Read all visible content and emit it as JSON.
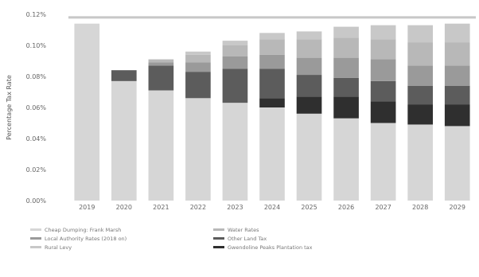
{
  "chart_data": {
    "type": "bar",
    "stacked": true,
    "title": "",
    "xlabel": "",
    "ylabel": "Percentage Tax Rate",
    "ylim": [
      0,
      0.12
    ],
    "yticks": [
      "0.00%",
      "0.02%",
      "0.04%",
      "0.06%",
      "0.08%",
      "0.10%",
      "0.12%"
    ],
    "ytick_values": [
      0,
      0.02,
      0.04,
      0.06,
      0.08,
      0.1,
      0.12
    ],
    "categories": [
      "2019",
      "2020",
      "2021",
      "2022",
      "2023",
      "2024",
      "2025",
      "2026",
      "2027",
      "2028",
      "2029"
    ],
    "reference_line": 0.118,
    "series": [
      {
        "name": "Cheap Dumping: Frank Marsh",
        "color": "#d6d6d6",
        "values": [
          0.114,
          0.077,
          0.071,
          0.066,
          0.063,
          0.06,
          0.056,
          0.053,
          0.05,
          0.049,
          0.048
        ]
      },
      {
        "name": "Gwendoline Peaks Plantation tax",
        "color": "#2f2f2f",
        "values": [
          0,
          0,
          0,
          0,
          0,
          0.006,
          0.011,
          0.014,
          0.014,
          0.013,
          0.014
        ]
      },
      {
        "name": "Other Land Tax",
        "color": "#5c5c5c",
        "values": [
          0,
          0.007,
          0.016,
          0.017,
          0.022,
          0.019,
          0.014,
          0.012,
          0.013,
          0.012,
          0.012
        ]
      },
      {
        "name": "Local Authority Rates (2018 on)",
        "color": "#9a9a9a",
        "values": [
          0,
          0,
          0.002,
          0.006,
          0.008,
          0.009,
          0.011,
          0.013,
          0.014,
          0.013,
          0.013
        ]
      },
      {
        "name": "Water Rates",
        "color": "#b8b8b8",
        "values": [
          0,
          0,
          0.002,
          0.005,
          0.007,
          0.01,
          0.012,
          0.013,
          0.013,
          0.015,
          0.015
        ]
      },
      {
        "name": "Rural Levy",
        "color": "#c8c8c8",
        "values": [
          0,
          0,
          0,
          0.002,
          0.003,
          0.004,
          0.005,
          0.007,
          0.009,
          0.011,
          0.012
        ]
      }
    ],
    "legend": [
      "Cheap Dumping: Frank Marsh",
      "Local Authority Rates (2018 on)",
      "Rural Levy",
      "Water Rates",
      "Other Land Tax",
      "Gwendoline Peaks Plantation tax"
    ],
    "grid": false,
    "legend_position": "bottom"
  }
}
